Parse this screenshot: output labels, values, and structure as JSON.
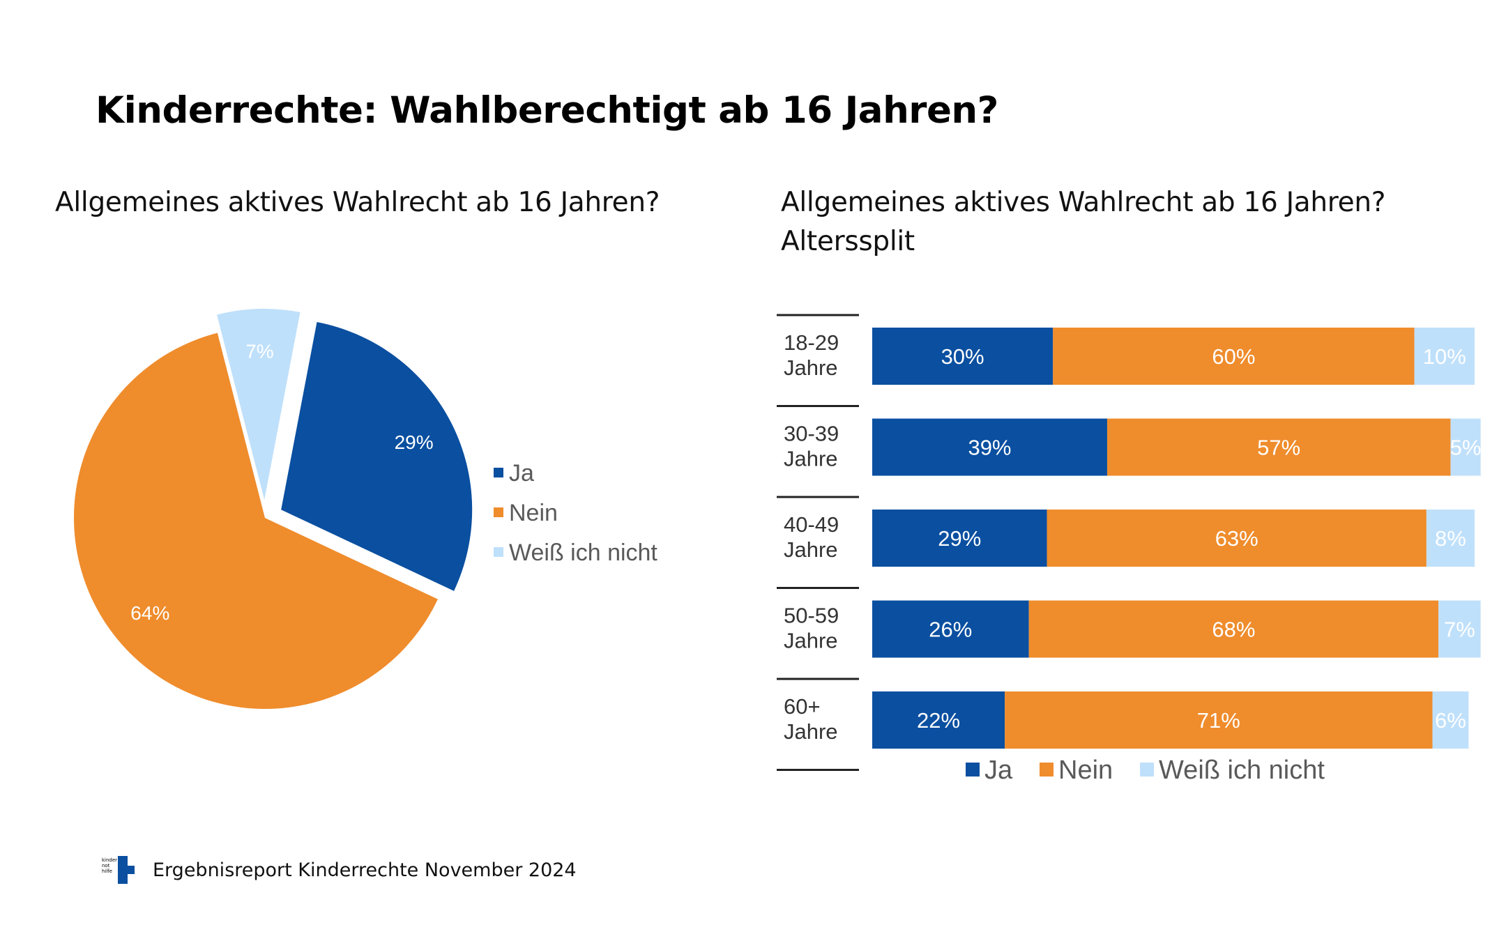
{
  "page": {
    "title": "Kinderrechte: Wahlberechtigt ab 16 Jahren?",
    "footer": "Ergebnisreport Kinderrechte November 2024",
    "logo_text": "kinder\nnot\nhilfe"
  },
  "colors": {
    "ja": "#0a4fa0",
    "nein": "#ef8c2c",
    "weiss": "#bfe0fb"
  },
  "chart_data": [
    {
      "type": "pie",
      "title": "Allgemeines aktives Wahlrecht ab 16 Jahren?",
      "legend_position": "right",
      "slices": [
        {
          "name": "Ja",
          "value": 29,
          "label": "29%",
          "exploded": true
        },
        {
          "name": "Nein",
          "value": 64,
          "label": "64%",
          "exploded": false
        },
        {
          "name": "Weiß ich nicht",
          "value": 7,
          "label": "7%",
          "exploded": true
        }
      ]
    },
    {
      "type": "bar",
      "orientation": "horizontal",
      "stacked": true,
      "title": "Allgemeines aktives Wahlrecht ab 16 Jahren? Alterssplit",
      "title_line1": "Allgemeines aktives Wahlrecht ab 16 Jahren?",
      "title_line2": "Alterssplit",
      "legend_position": "bottom",
      "categories": [
        [
          "18-29",
          "Jahre"
        ],
        [
          "30-39",
          "Jahre"
        ],
        [
          "40-49",
          "Jahre"
        ],
        [
          "50-59",
          "Jahre"
        ],
        [
          "60+",
          "Jahre"
        ]
      ],
      "series": [
        {
          "name": "Ja",
          "values": [
            30,
            39,
            29,
            26,
            22
          ],
          "labels": [
            "30%",
            "39%",
            "29%",
            "26%",
            "22%"
          ]
        },
        {
          "name": "Nein",
          "values": [
            60,
            57,
            63,
            68,
            71
          ],
          "labels": [
            "60%",
            "57%",
            "63%",
            "68%",
            "71%"
          ]
        },
        {
          "name": "Weiß ich nicht",
          "values": [
            10,
            5,
            8,
            7,
            6
          ],
          "labels": [
            "10%",
            "5%",
            "8%",
            "7%",
            "6%"
          ]
        }
      ]
    }
  ]
}
